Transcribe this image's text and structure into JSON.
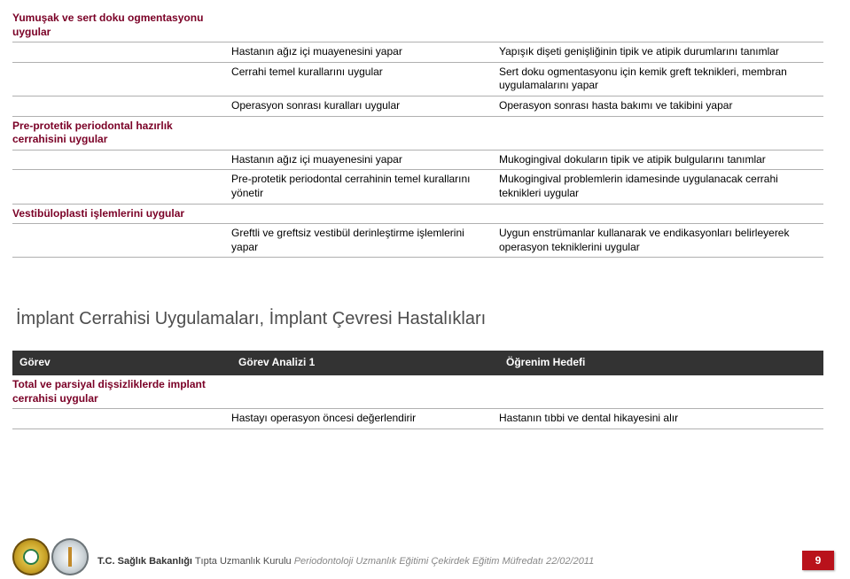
{
  "colors": {
    "maroon": "#7a0026",
    "grey_text": "#4d4d4d",
    "header_bg": "#333333",
    "border": "#b0b0b0",
    "page_red": "#b9121b",
    "body_text": "#000000"
  },
  "table1": {
    "rows": [
      {
        "left": "Yumuşak ve sert doku ogmentasyonu uygular",
        "mid": "",
        "right": ""
      },
      {
        "left": "",
        "mid": "Hastanın ağız içi muayenesini yapar",
        "right": "Yapışık dişeti genişliğinin tipik ve atipik durumlarını tanımlar"
      },
      {
        "left": "",
        "mid": "Cerrahi temel kurallarını uygular",
        "right": "Sert doku ogmentasyonu için kemik greft teknikleri, membran uygulamalarını yapar"
      },
      {
        "left": "",
        "mid": "Operasyon sonrası kuralları uygular",
        "right": "Operasyon sonrası hasta bakımı ve takibini yapar"
      },
      {
        "left": "Pre-protetik periodontal hazırlık cerrahisini uygular",
        "mid": "",
        "right": ""
      },
      {
        "left": "",
        "mid": "Hastanın ağız içi muayenesini yapar",
        "right": "Mukogingival dokuların tipik ve atipik bulgularını tanımlar"
      },
      {
        "left": "",
        "mid": "Pre-protetik periodontal cerrahinin temel kurallarını yönetir",
        "right": "Mukogingival problemlerin idamesinde uygulanacak cerrahi teknikleri uygular"
      },
      {
        "left": "Vestibüloplasti işlemlerini uygular",
        "mid": "",
        "right": ""
      },
      {
        "left": "",
        "mid": "Greftli ve greftsiz vestibül derinleştirme işlemlerini yapar",
        "right": "Uygun enstrümanlar kullanarak ve endikasyonları belirleyerek operasyon tekniklerini uygular"
      }
    ]
  },
  "section_title": "İmplant Cerrahisi Uygulamaları, İmplant Çevresi Hastalıkları",
  "table2": {
    "header": [
      "Görev",
      "Görev Analizi 1",
      "Öğrenim Hedefi"
    ],
    "rows": [
      {
        "left": "Total ve parsiyal dişsizliklerde implant cerrahisi uygular",
        "mid": "",
        "right": ""
      },
      {
        "left": "",
        "mid": "Hastayı operasyon öncesi değerlendirir",
        "right": "Hastanın tıbbi ve dental hikayesini alır"
      }
    ]
  },
  "footer": {
    "bold": "T.C. Sağlık Bakanlığı",
    "rest": " Tıpta Uzmanlık Kurulu ",
    "ital": "Periodontoloji Uzmanlık Eğitimi Çekirdek Eğitim Müfredatı 22/02/2011",
    "page": "9"
  }
}
